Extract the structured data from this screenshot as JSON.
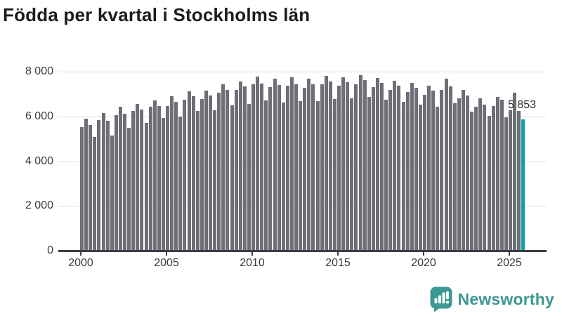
{
  "title": "Födda per kvartal i Stockholms län",
  "chart_data": {
    "type": "bar",
    "title": "Födda per kvartal i Stockholms län",
    "xlabel": "",
    "ylabel": "",
    "x_unit": "quarter",
    "x_start": "2000 Q1",
    "x_end": "2025 Q4",
    "ylim": [
      0,
      8000
    ],
    "grid": "horizontal",
    "ytick_values": [
      0,
      2000,
      4000,
      6000,
      8000
    ],
    "ytick_labels": [
      "0",
      "2 000",
      "4 000",
      "6 000",
      "8 000"
    ],
    "xtick_labels": [
      "2000",
      "2005",
      "2010",
      "2015",
      "2020",
      "2025"
    ],
    "xtick_every_n_bars": 20,
    "bar_color": "#6e6e77",
    "highlight_color": "#11a1a1",
    "values": [
      5520,
      5910,
      5610,
      5070,
      5840,
      6150,
      5800,
      5150,
      6050,
      6420,
      6130,
      5480,
      6250,
      6560,
      6310,
      5700,
      6420,
      6730,
      6460,
      5940,
      6450,
      6890,
      6640,
      5980,
      6760,
      7110,
      6900,
      6230,
      6780,
      7160,
      6950,
      6280,
      7060,
      7440,
      7180,
      6480,
      7190,
      7560,
      7350,
      6570,
      7430,
      7780,
      7470,
      6710,
      7300,
      7690,
      7400,
      6630,
      7360,
      7740,
      7450,
      6680,
      7290,
      7680,
      7430,
      6690,
      7450,
      7820,
      7560,
      6790,
      7370,
      7760,
      7520,
      6800,
      7440,
      7840,
      7610,
      6870,
      7310,
      7730,
      7490,
      6760,
      7190,
      7600,
      7380,
      6650,
      7080,
      7490,
      7270,
      6540,
      6980,
      7380,
      7160,
      6440,
      7200,
      7680,
      7350,
      6600,
      6810,
      7190,
      6920,
      6210,
      6420,
      6810,
      6530,
      6010,
      6470,
      6870,
      6735,
      5965,
      6280,
      7050,
      6260,
      5853
    ],
    "highlight": {
      "index": 103,
      "quarter": "2025 Q4",
      "value": 5853,
      "label": "5 853"
    }
  },
  "branding": {
    "logo_text": "Newsworthy",
    "logo_icon": "bar-chart-speech-bubble-icon",
    "brand_color": "#3d9792"
  }
}
